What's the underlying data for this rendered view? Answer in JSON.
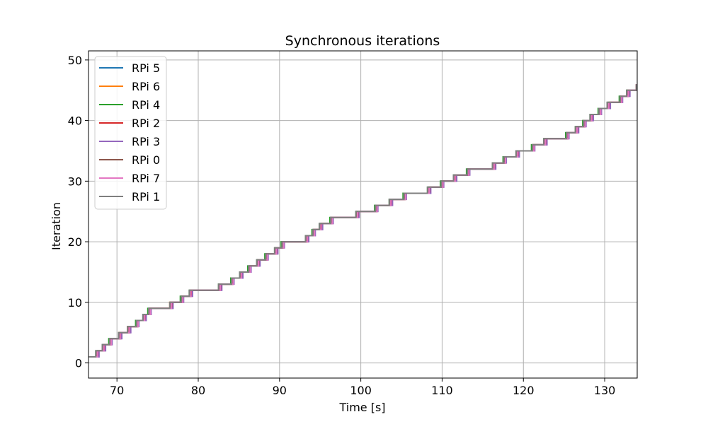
{
  "chart_data": {
    "type": "line",
    "title": "Synchronous iterations",
    "xlabel": "Time [s]",
    "ylabel": "Iteration",
    "xlim": [
      66.5,
      134
    ],
    "ylim": [
      -2.5,
      51.5
    ],
    "xticks": [
      70,
      80,
      90,
      100,
      110,
      120,
      130
    ],
    "yticks": [
      0,
      10,
      20,
      30,
      40,
      50
    ],
    "grid": true,
    "legend_position": "upper-left",
    "step": true,
    "series": [
      {
        "name": "RPi 5",
        "color": "#1f77b4",
        "x": [
          66.5,
          67.5,
          68.2,
          69.1,
          70.3,
          71.4,
          72.4,
          73.2,
          73.9,
          76.6,
          77.9,
          79.0,
          82.6,
          84.1,
          85.2,
          86.2,
          87.3,
          88.3,
          89.5,
          90.4,
          93.3,
          94.1,
          95.0,
          96.3,
          99.5,
          101.8,
          103.6,
          105.3,
          108.3,
          109.9,
          111.5,
          113.1,
          116.3,
          117.6,
          119.2,
          121.1,
          122.6,
          125.3,
          126.5,
          127.4,
          128.3,
          129.3,
          130.4,
          131.9,
          132.8,
          133.9
        ],
        "y": [
          1,
          2,
          3,
          4,
          5,
          6,
          7,
          8,
          9,
          10,
          11,
          12,
          13,
          14,
          15,
          16,
          17,
          18,
          19,
          20,
          21,
          22,
          23,
          24,
          25,
          26,
          27,
          28,
          29,
          30,
          31,
          32,
          33,
          34,
          35,
          36,
          37,
          38,
          39,
          40,
          41,
          42,
          43,
          44,
          45,
          46
        ]
      },
      {
        "name": "RPi 6",
        "color": "#ff7f0e",
        "x": [
          66.5,
          67.6,
          68.4,
          69.2,
          70.2,
          71.3,
          72.5,
          73.3,
          74.0,
          76.5,
          78.0,
          79.1,
          82.7,
          84.2,
          85.3,
          86.3,
          87.4,
          88.4,
          89.6,
          90.3,
          93.4,
          94.2,
          95.1,
          96.4,
          99.6,
          101.9,
          103.7,
          105.4,
          108.4,
          110.0,
          111.6,
          113.2,
          116.4,
          117.7,
          119.3,
          121.2,
          122.7,
          125.4,
          126.6,
          127.5,
          128.4,
          129.4,
          130.5,
          132.0,
          132.9,
          133.9
        ],
        "y": [
          1,
          2,
          3,
          4,
          5,
          6,
          7,
          8,
          9,
          10,
          11,
          12,
          13,
          14,
          15,
          16,
          17,
          18,
          19,
          20,
          21,
          22,
          23,
          24,
          25,
          26,
          27,
          28,
          29,
          30,
          31,
          32,
          33,
          34,
          35,
          36,
          37,
          38,
          39,
          40,
          41,
          42,
          43,
          44,
          45,
          46
        ]
      },
      {
        "name": "RPi 4",
        "color": "#2ca02c",
        "x": [
          66.5,
          67.4,
          68.3,
          69.0,
          70.4,
          71.5,
          72.3,
          73.4,
          73.8,
          76.7,
          77.8,
          78.9,
          82.5,
          84.0,
          85.1,
          86.1,
          87.2,
          88.2,
          89.4,
          90.2,
          93.2,
          94.0,
          94.9,
          96.2,
          99.4,
          101.7,
          103.5,
          105.2,
          108.2,
          109.8,
          111.4,
          113.0,
          116.2,
          117.5,
          119.1,
          121.0,
          122.5,
          125.2,
          126.4,
          127.3,
          128.2,
          129.2,
          130.3,
          131.8,
          132.7,
          133.9
        ],
        "y": [
          1,
          2,
          3,
          4,
          5,
          6,
          7,
          8,
          9,
          10,
          11,
          12,
          13,
          14,
          15,
          16,
          17,
          18,
          19,
          20,
          21,
          22,
          23,
          24,
          25,
          26,
          27,
          28,
          29,
          30,
          31,
          32,
          33,
          34,
          35,
          36,
          37,
          38,
          39,
          40,
          41,
          42,
          43,
          44,
          45,
          46
        ]
      },
      {
        "name": "RPi 2",
        "color": "#d62728",
        "x": [
          66.5,
          67.7,
          68.5,
          69.3,
          70.5,
          71.6,
          72.6,
          73.5,
          74.1,
          76.8,
          78.1,
          79.2,
          82.8,
          84.3,
          85.4,
          86.4,
          87.5,
          88.5,
          89.7,
          90.5,
          93.5,
          94.3,
          95.2,
          96.5,
          99.7,
          102.0,
          103.8,
          105.5,
          108.5,
          110.1,
          111.7,
          113.3,
          116.5,
          117.8,
          119.4,
          121.3,
          122.8,
          125.5,
          126.7,
          127.6,
          128.5,
          129.5,
          130.6,
          132.1,
          133.0,
          133.9
        ],
        "y": [
          1,
          2,
          3,
          4,
          5,
          6,
          7,
          8,
          9,
          10,
          11,
          12,
          13,
          14,
          15,
          16,
          17,
          18,
          19,
          20,
          21,
          22,
          23,
          24,
          25,
          26,
          27,
          28,
          29,
          30,
          31,
          32,
          33,
          34,
          35,
          36,
          37,
          38,
          39,
          40,
          41,
          42,
          43,
          44,
          45,
          46
        ]
      },
      {
        "name": "RPi 3",
        "color": "#9467bd",
        "x": [
          66.5,
          67.8,
          68.6,
          69.4,
          70.6,
          71.7,
          72.7,
          73.6,
          74.2,
          76.9,
          78.2,
          79.3,
          82.9,
          84.4,
          85.5,
          86.5,
          87.6,
          88.6,
          89.8,
          90.6,
          93.6,
          94.4,
          95.3,
          96.6,
          99.8,
          102.1,
          103.9,
          105.6,
          108.6,
          110.2,
          111.8,
          113.4,
          116.6,
          117.9,
          119.5,
          121.4,
          122.9,
          125.6,
          126.8,
          127.7,
          128.6,
          129.6,
          130.7,
          132.2,
          133.1,
          133.9
        ],
        "y": [
          1,
          2,
          3,
          4,
          5,
          6,
          7,
          8,
          9,
          10,
          11,
          12,
          13,
          14,
          15,
          16,
          17,
          18,
          19,
          20,
          21,
          22,
          23,
          24,
          25,
          26,
          27,
          28,
          29,
          30,
          31,
          32,
          33,
          34,
          35,
          36,
          37,
          38,
          39,
          40,
          41,
          42,
          43,
          44,
          45,
          46
        ]
      },
      {
        "name": "RPi 0",
        "color": "#8c564b",
        "x": [
          66.5,
          67.5,
          68.3,
          69.2,
          70.3,
          71.4,
          72.5,
          73.3,
          74.0,
          76.6,
          78.0,
          79.0,
          82.6,
          84.2,
          85.2,
          86.3,
          87.3,
          88.4,
          89.5,
          90.4,
          93.3,
          94.2,
          95.0,
          96.4,
          99.5,
          101.9,
          103.6,
          105.4,
          108.3,
          110.0,
          111.5,
          113.2,
          116.3,
          117.7,
          119.2,
          121.2,
          122.6,
          125.4,
          126.5,
          127.5,
          128.3,
          129.4,
          130.4,
          132.0,
          132.8,
          133.9
        ],
        "y": [
          1,
          2,
          3,
          4,
          5,
          6,
          7,
          8,
          9,
          10,
          11,
          12,
          13,
          14,
          15,
          16,
          17,
          18,
          19,
          20,
          21,
          22,
          23,
          24,
          25,
          26,
          27,
          28,
          29,
          30,
          31,
          32,
          33,
          34,
          35,
          36,
          37,
          38,
          39,
          40,
          41,
          42,
          43,
          44,
          45,
          46
        ]
      },
      {
        "name": "RPi 7",
        "color": "#e377c2",
        "x": [
          66.5,
          67.6,
          68.4,
          69.3,
          70.4,
          71.5,
          72.6,
          73.4,
          74.1,
          76.7,
          78.1,
          79.1,
          82.7,
          84.3,
          85.3,
          86.4,
          87.4,
          88.5,
          89.6,
          90.5,
          93.4,
          94.3,
          95.1,
          96.5,
          99.6,
          102.0,
          103.7,
          105.5,
          108.4,
          110.1,
          111.6,
          113.3,
          116.4,
          117.8,
          119.3,
          121.3,
          122.7,
          125.5,
          126.6,
          127.6,
          128.4,
          129.5,
          130.5,
          132.1,
          132.9,
          133.9
        ],
        "y": [
          1,
          2,
          3,
          4,
          5,
          6,
          7,
          8,
          9,
          10,
          11,
          12,
          13,
          14,
          15,
          16,
          17,
          18,
          19,
          20,
          21,
          22,
          23,
          24,
          25,
          26,
          27,
          28,
          29,
          30,
          31,
          32,
          33,
          34,
          35,
          36,
          37,
          38,
          39,
          40,
          41,
          42,
          43,
          44,
          45,
          46
        ]
      },
      {
        "name": "RPi 1",
        "color": "#7f7f7f",
        "x": [
          66.5,
          67.4,
          68.2,
          69.1,
          70.2,
          71.3,
          72.4,
          73.2,
          73.9,
          76.5,
          77.9,
          78.9,
          82.5,
          84.1,
          85.1,
          86.2,
          87.2,
          88.3,
          89.4,
          90.3,
          93.2,
          94.1,
          94.9,
          96.3,
          99.4,
          101.8,
          103.5,
          105.3,
          108.2,
          109.9,
          111.4,
          113.1,
          116.2,
          117.6,
          119.1,
          121.1,
          122.5,
          125.3,
          126.4,
          127.4,
          128.2,
          129.3,
          130.3,
          131.9,
          132.7,
          133.9
        ],
        "y": [
          1,
          2,
          3,
          4,
          5,
          6,
          7,
          8,
          9,
          10,
          11,
          12,
          13,
          14,
          15,
          16,
          17,
          18,
          19,
          20,
          21,
          22,
          23,
          24,
          25,
          26,
          27,
          28,
          29,
          30,
          31,
          32,
          33,
          34,
          35,
          36,
          37,
          38,
          39,
          40,
          41,
          42,
          43,
          44,
          45,
          46
        ]
      }
    ]
  }
}
